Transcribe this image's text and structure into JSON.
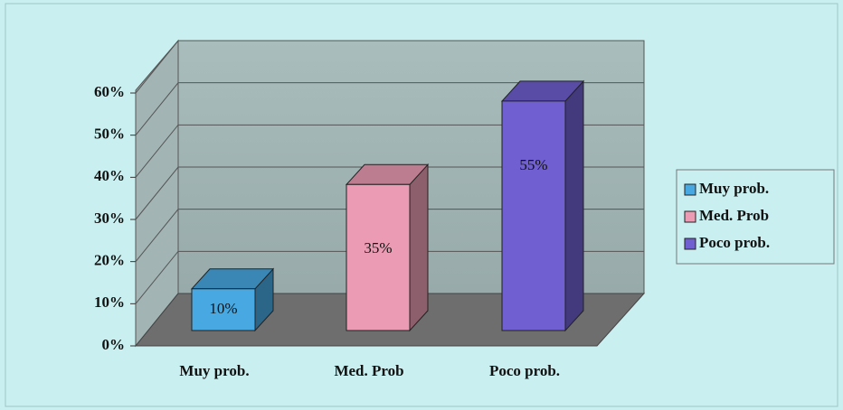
{
  "chart_data": {
    "type": "bar3d",
    "categories": [
      "Muy prob.",
      "Med. Prob",
      "Poco prob."
    ],
    "values": [
      10,
      35,
      55
    ],
    "value_labels": [
      "10%",
      "35%",
      "55%"
    ],
    "colors": [
      "#48a9e2",
      "#eb9cb4",
      "#6f5fd0"
    ],
    "ylim": [
      0,
      60
    ],
    "yticks": [
      {
        "value": 0,
        "label": "0%"
      },
      {
        "value": 10,
        "label": "10%"
      },
      {
        "value": 20,
        "label": "20%"
      },
      {
        "value": 30,
        "label": "30%"
      },
      {
        "value": 40,
        "label": "40%"
      },
      {
        "value": 50,
        "label": "50%"
      },
      {
        "value": 60,
        "label": "60%"
      }
    ],
    "grid": true,
    "legend": "right"
  }
}
